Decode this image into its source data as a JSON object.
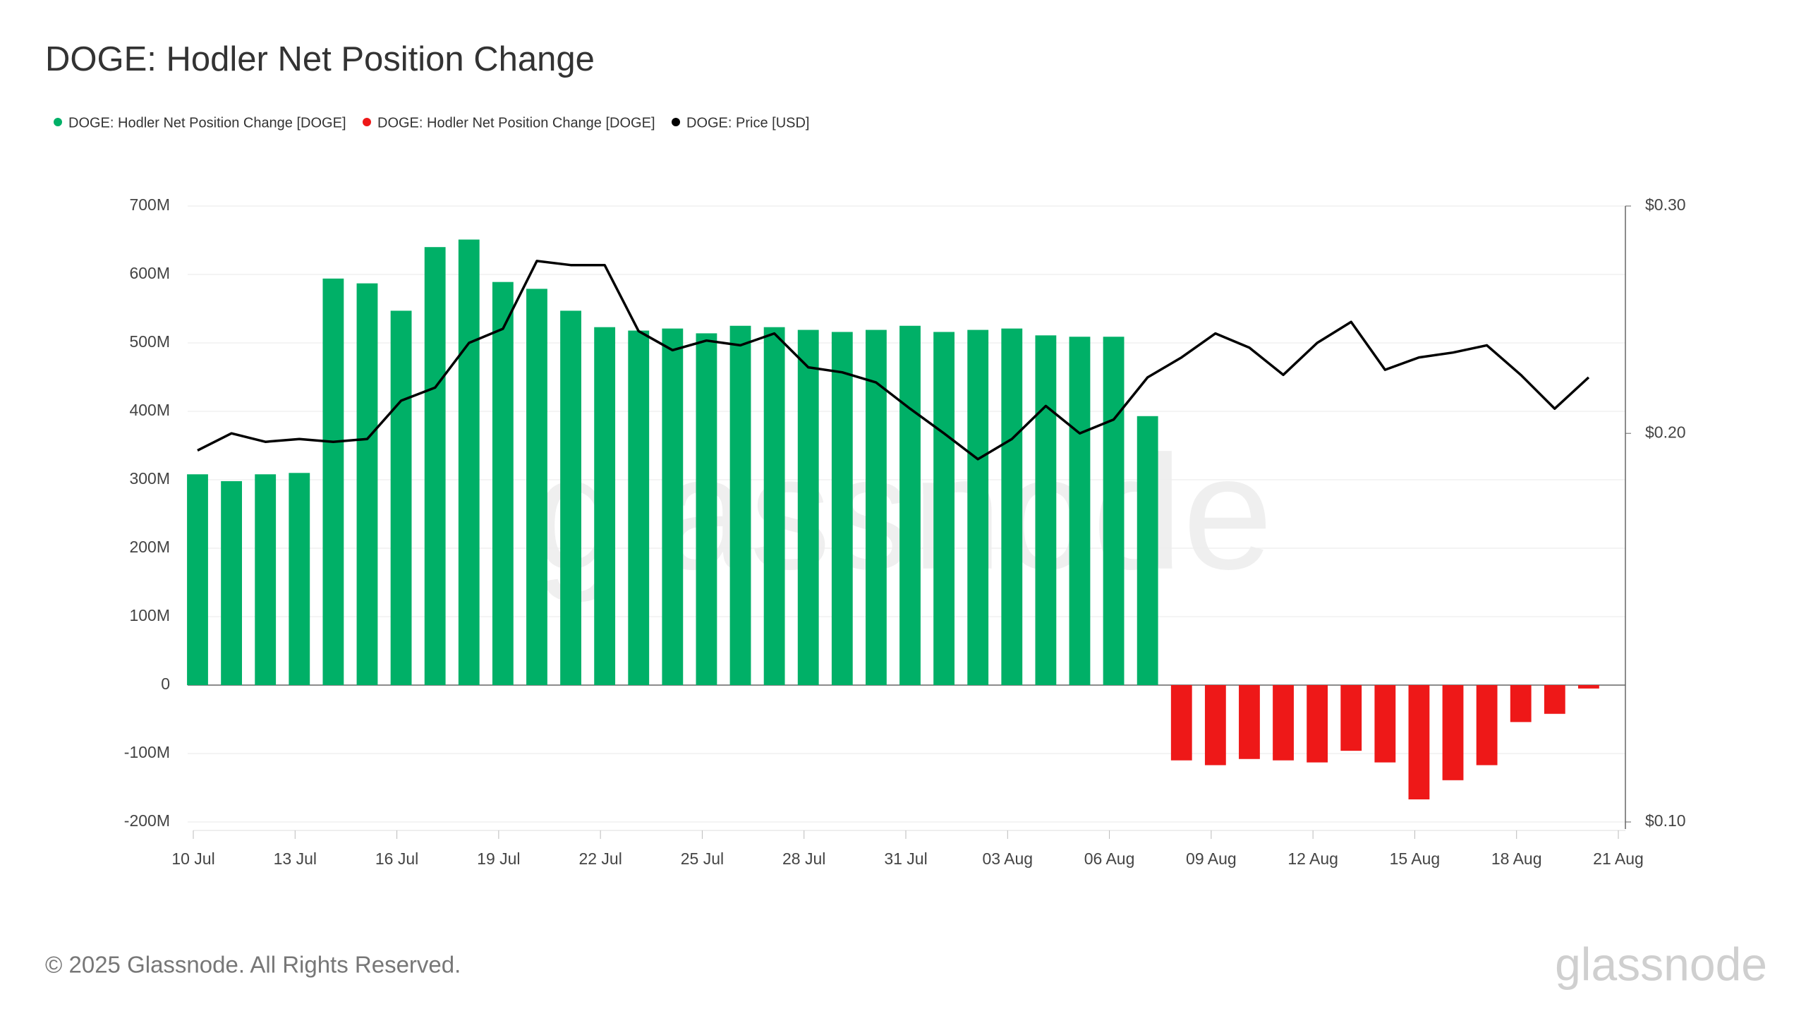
{
  "chart_data": {
    "type": "bar",
    "title": "DOGE: Hodler Net Position Change",
    "watermark": "glassnode",
    "footer": "© 2025 Glassnode. All Rights Reserved.",
    "logo": "glassnode",
    "categories": [
      "10 Jul",
      null,
      null,
      "13 Jul",
      null,
      null,
      "16 Jul",
      null,
      null,
      "19 Jul",
      null,
      null,
      "22 Jul",
      null,
      null,
      "25 Jul",
      null,
      null,
      "28 Jul",
      null,
      null,
      "31 Jul",
      null,
      null,
      "03 Aug",
      null,
      null,
      "06 Aug",
      null,
      null,
      "09 Aug",
      null,
      null,
      "12 Aug",
      null,
      null,
      "15 Aug",
      null,
      null,
      "18 Aug",
      null,
      null,
      "21 Aug"
    ],
    "series": [
      {
        "name": "DOGE: Hodler Net Position Change [DOGE]",
        "color": "#00b067",
        "type": "bar",
        "values": [
          308000000,
          298000000,
          308000000,
          310000000,
          594000000,
          587000000,
          547000000,
          640000000,
          651000000,
          589000000,
          579000000,
          547000000,
          523000000,
          518000000,
          521000000,
          514000000,
          525000000,
          523000000,
          519000000,
          516000000,
          519000000,
          525000000,
          516000000,
          519000000,
          521000000,
          511000000,
          509000000,
          509000000,
          393000000,
          null,
          null,
          null,
          null,
          null,
          null,
          null,
          null,
          null,
          null,
          null,
          null,
          null,
          null
        ]
      },
      {
        "name": "DOGE: Hodler Net Position Change [DOGE]",
        "color": "#ee1818",
        "type": "bar",
        "values": [
          null,
          null,
          null,
          null,
          null,
          null,
          null,
          null,
          null,
          null,
          null,
          null,
          null,
          null,
          null,
          null,
          null,
          null,
          null,
          null,
          null,
          null,
          null,
          null,
          null,
          null,
          null,
          null,
          null,
          -110000000,
          -117000000,
          -108000000,
          -110000000,
          -113000000,
          -96000000,
          -113000000,
          -167000000,
          -139000000,
          -117000000,
          -54000000,
          -42000000,
          -5000000,
          null
        ]
      },
      {
        "name": "DOGE: Price [USD]",
        "color": "#000000",
        "type": "line",
        "axis": "y2",
        "values": [
          0.194,
          0.2,
          0.197,
          0.198,
          0.197,
          0.198,
          0.212,
          0.217,
          0.235,
          0.241,
          0.272,
          0.27,
          0.27,
          0.24,
          0.232,
          0.236,
          0.234,
          0.239,
          0.225,
          0.223,
          0.219,
          0.209,
          0.2,
          0.191,
          0.198,
          0.21,
          0.2,
          0.205,
          0.221,
          0.229,
          0.239,
          0.233,
          0.222,
          0.235,
          0.244,
          0.224,
          0.229,
          0.231,
          0.234,
          0.222,
          0.209,
          0.221,
          null
        ]
      }
    ],
    "ylim": [
      -200000000,
      700000000
    ],
    "yticks": [
      {
        "value": -200000000,
        "label": "-200M"
      },
      {
        "value": -100000000,
        "label": "-100M"
      },
      0,
      {
        "value": 100000000,
        "label": "100M"
      },
      {
        "value": 200000000,
        "label": "200M"
      },
      {
        "value": 300000000,
        "label": "300M"
      },
      {
        "value": 400000000,
        "label": "400M"
      },
      {
        "value": 500000000,
        "label": "500M"
      },
      {
        "value": 600000000,
        "label": "600M"
      },
      {
        "value": 700000000,
        "label": "700M"
      }
    ],
    "y2lim": [
      0.1,
      0.3
    ],
    "y2scale": "log",
    "y2ticks": [
      {
        "value": 0.1,
        "label": "$0.10"
      },
      {
        "value": 0.2,
        "label": "$0.20"
      },
      {
        "value": 0.3,
        "label": "$0.30"
      }
    ],
    "grid": true
  }
}
